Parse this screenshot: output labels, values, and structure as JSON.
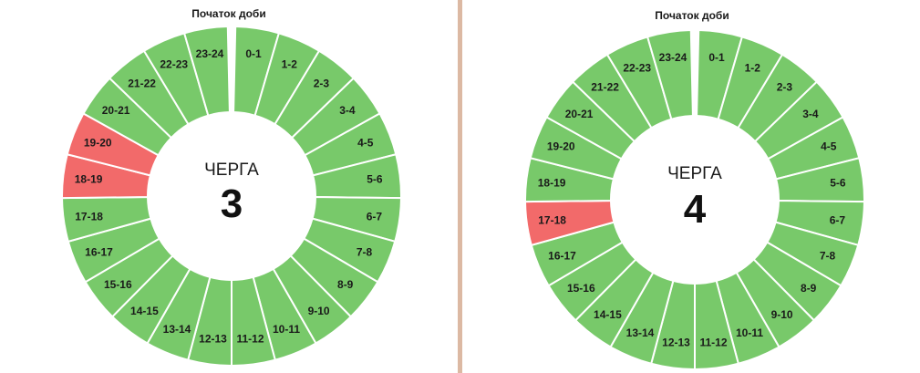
{
  "chart_data": [
    {
      "type": "pie",
      "title": "ЧЕРГА",
      "queue_number": "3",
      "start_label": "Початок доби",
      "categories": [
        "0-1",
        "1-2",
        "2-3",
        "3-4",
        "4-5",
        "5-6",
        "6-7",
        "7-8",
        "8-9",
        "9-10",
        "10-11",
        "11-12",
        "12-13",
        "13-14",
        "14-15",
        "15-16",
        "16-17",
        "17-18",
        "18-19",
        "19-20",
        "20-21",
        "21-22",
        "22-23",
        "23-24"
      ],
      "values": [
        1,
        1,
        1,
        1,
        1,
        1,
        1,
        1,
        1,
        1,
        1,
        1,
        1,
        1,
        1,
        1,
        1,
        1,
        1,
        1,
        1,
        1,
        1,
        1
      ],
      "status": [
        "on",
        "on",
        "on",
        "on",
        "on",
        "on",
        "on",
        "on",
        "on",
        "on",
        "on",
        "on",
        "on",
        "on",
        "on",
        "on",
        "on",
        "on",
        "off",
        "off",
        "on",
        "on",
        "on",
        "on"
      ]
    },
    {
      "type": "pie",
      "title": "ЧЕРГА",
      "queue_number": "4",
      "start_label": "Початок доби",
      "categories": [
        "0-1",
        "1-2",
        "2-3",
        "3-4",
        "4-5",
        "5-6",
        "6-7",
        "7-8",
        "8-9",
        "9-10",
        "10-11",
        "11-12",
        "12-13",
        "13-14",
        "14-15",
        "15-16",
        "16-17",
        "17-18",
        "18-19",
        "19-20",
        "20-21",
        "21-22",
        "22-23",
        "23-24"
      ],
      "values": [
        1,
        1,
        1,
        1,
        1,
        1,
        1,
        1,
        1,
        1,
        1,
        1,
        1,
        1,
        1,
        1,
        1,
        1,
        1,
        1,
        1,
        1,
        1,
        1
      ],
      "status": [
        "on",
        "on",
        "on",
        "on",
        "on",
        "on",
        "on",
        "on",
        "on",
        "on",
        "on",
        "on",
        "on",
        "on",
        "on",
        "on",
        "on",
        "off",
        "on",
        "on",
        "on",
        "on",
        "on",
        "on"
      ]
    }
  ],
  "colors": {
    "on": "#78c96a",
    "off": "#f26a6a",
    "separator": "#ffffff"
  }
}
